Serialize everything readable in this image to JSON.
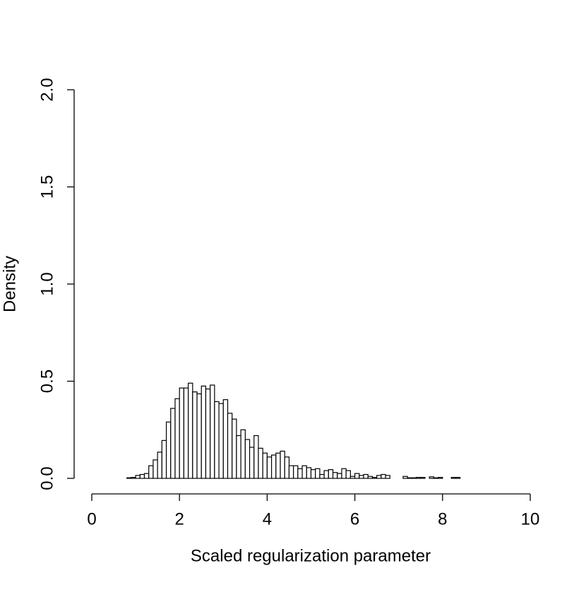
{
  "chart_data": {
    "type": "histogram",
    "x_label": "Scaled regularization parameter",
    "y_label": "Density",
    "bins": [
      0,
      0.1,
      0.2,
      0.3,
      0.4,
      0.5,
      0.6,
      0.7,
      0.8,
      0.9,
      1,
      1.1,
      1.2,
      1.3,
      1.4,
      1.5,
      1.6,
      1.7,
      1.8,
      1.9,
      2,
      2.1,
      2.2,
      2.3,
      2.4,
      2.5,
      2.6,
      2.7,
      2.8,
      2.9,
      3,
      3.1,
      3.2,
      3.3,
      3.4,
      3.5,
      3.6,
      3.7,
      3.8,
      3.9,
      4,
      4.1,
      4.2,
      4.3,
      4.4,
      4.5,
      4.6,
      4.7,
      4.8,
      4.9,
      5,
      5.1,
      5.2,
      5.3,
      5.4,
      5.5,
      5.6,
      5.7,
      5.8,
      5.9,
      6,
      6.1,
      6.2,
      6.3,
      6.4,
      6.5,
      6.6,
      6.7,
      6.8,
      6.9,
      7,
      7.1,
      7.2,
      7.3,
      7.4,
      7.5,
      7.6,
      7.7,
      7.8,
      7.9,
      8,
      8.1,
      8.2,
      8.3,
      8.4,
      8.5,
      8.6,
      8.7,
      8.8,
      8.9,
      9,
      9.1,
      9.2,
      9.3,
      9.4,
      9.5,
      9.6,
      9.7,
      9.8,
      9.9,
      10
    ],
    "values": [
      0,
      0,
      0,
      0,
      0,
      0,
      0,
      0,
      0.003,
      0.005,
      0.015,
      0.02,
      0.025,
      0.065,
      0.095,
      0.135,
      0.195,
      0.29,
      0.36,
      0.41,
      0.465,
      0.465,
      0.49,
      0.445,
      0.435,
      0.475,
      0.46,
      0.48,
      0.395,
      0.385,
      0.405,
      0.335,
      0.305,
      0.22,
      0.25,
      0.2,
      0.16,
      0.22,
      0.155,
      0.13,
      0.11,
      0.12,
      0.13,
      0.14,
      0.11,
      0.065,
      0.065,
      0.05,
      0.065,
      0.055,
      0.045,
      0.05,
      0.02,
      0.04,
      0.045,
      0.03,
      0.025,
      0.05,
      0.04,
      0.01,
      0.025,
      0.015,
      0.02,
      0.01,
      0.005,
      0.015,
      0.02,
      0.015,
      0,
      0,
      0,
      0.01,
      0.003,
      0.003,
      0.005,
      0.005,
      0,
      0.008,
      0.003,
      0.005,
      0,
      0,
      0.005,
      0.005,
      0,
      0,
      0,
      0,
      0,
      0,
      0,
      0,
      0,
      0,
      0,
      0,
      0,
      0,
      0,
      0
    ],
    "color": "#ffffff",
    "xlim": [
      0,
      10
    ],
    "xticks": [
      0,
      2,
      4,
      6,
      8,
      10
    ],
    "ylim": [
      0,
      2
    ],
    "yticks": [
      {
        "value": 0,
        "label": "0.0"
      },
      {
        "value": 0.5,
        "label": "0.5"
      },
      {
        "value": 1,
        "label": "1.0"
      },
      {
        "value": 1.5,
        "label": "1.5"
      },
      {
        "value": 2,
        "label": "2.0"
      }
    ]
  }
}
